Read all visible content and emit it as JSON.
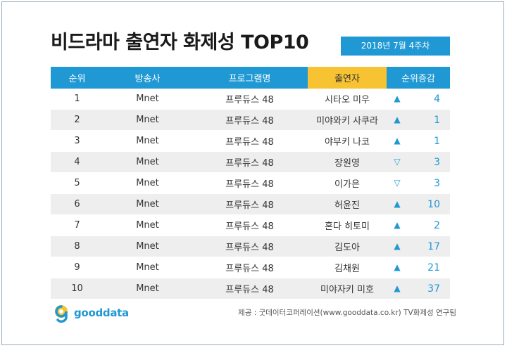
{
  "title": "비드라마 출연자 화제성 TOP10",
  "week": "2018년  7월 4주차",
  "columns": [
    "순위",
    "방송사",
    "프로그램명",
    "출연자",
    "순위증감"
  ],
  "rows": [
    {
      "rank": "1",
      "channel": "Mnet",
      "program": "프루듀스 48",
      "performer": "시타오 미우",
      "dir": "up",
      "arrow": "▲",
      "change": "4"
    },
    {
      "rank": "2",
      "channel": "Mnet",
      "program": "프루듀스 48",
      "performer": "미야와키 사쿠라",
      "dir": "up",
      "arrow": "▲",
      "change": "1"
    },
    {
      "rank": "3",
      "channel": "Mnet",
      "program": "프루듀스 48",
      "performer": "야부키 나코",
      "dir": "up",
      "arrow": "▲",
      "change": "1"
    },
    {
      "rank": "4",
      "channel": "Mnet",
      "program": "프루듀스 48",
      "performer": "장원영",
      "dir": "down",
      "arrow": "▽",
      "change": "3"
    },
    {
      "rank": "5",
      "channel": "Mnet",
      "program": "프루듀스 48",
      "performer": "이가은",
      "dir": "down",
      "arrow": "▽",
      "change": "3"
    },
    {
      "rank": "6",
      "channel": "Mnet",
      "program": "프루듀스 48",
      "performer": "허윤진",
      "dir": "up",
      "arrow": "▲",
      "change": "10"
    },
    {
      "rank": "7",
      "channel": "Mnet",
      "program": "프루듀스 48",
      "performer": "혼다 히토미",
      "dir": "up",
      "arrow": "▲",
      "change": "2"
    },
    {
      "rank": "8",
      "channel": "Mnet",
      "program": "프루듀스 48",
      "performer": "김도아",
      "dir": "up",
      "arrow": "▲",
      "change": "17"
    },
    {
      "rank": "9",
      "channel": "Mnet",
      "program": "프루듀스 48",
      "performer": "김채원",
      "dir": "up",
      "arrow": "▲",
      "change": "21"
    },
    {
      "rank": "10",
      "channel": "Mnet",
      "program": "프루듀스 48",
      "performer": "미야자키 미호",
      "dir": "up",
      "arrow": "▲",
      "change": "37"
    }
  ],
  "logo_text": "gooddata",
  "source": "제공 : 굿데이터코퍼레이션(www.gooddata.co.kr) TV화제성 연구팀",
  "colors": {
    "accent": "#1f98d4",
    "highlight": "#f7c332"
  }
}
